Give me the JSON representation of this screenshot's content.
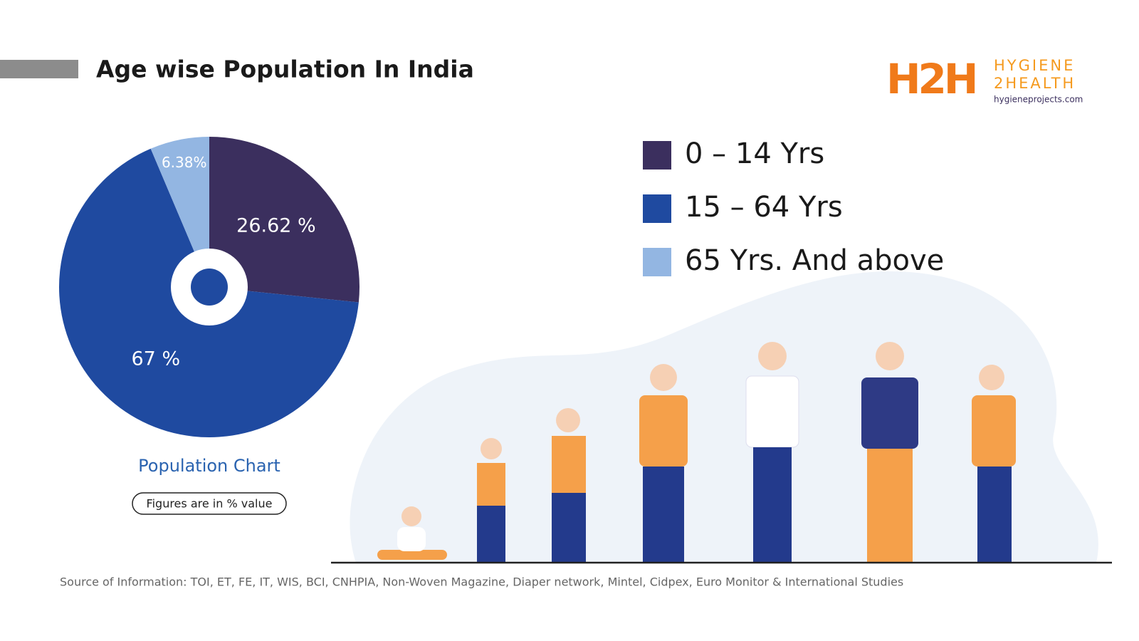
{
  "header": {
    "title": "Age wise Population In India"
  },
  "logo": {
    "mark": "H2H",
    "brand_line1": "HYGIENE",
    "brand_line2": "2HEALTH",
    "website": "hygieneprojects.com"
  },
  "chart_data": {
    "type": "pie",
    "categories": [
      "0 – 14 Yrs",
      "15 – 64 Yrs",
      "65 Yrs. And above"
    ],
    "values": [
      26.62,
      67,
      6.38
    ],
    "value_labels": [
      "26.62 %",
      "67 %",
      "6.38%"
    ],
    "colors": [
      "#3b2f5e",
      "#1f4aa0",
      "#93b6e2"
    ],
    "caption": "Population Chart",
    "note": "Figures are in % value"
  },
  "footer": {
    "source": "Source of Information: TOI, ET, FE, IT, WIS, BCI, CNHPIA, Non-Woven Magazine, Diaper network, Mintel, Cidpex, Euro Monitor & International Studies"
  }
}
